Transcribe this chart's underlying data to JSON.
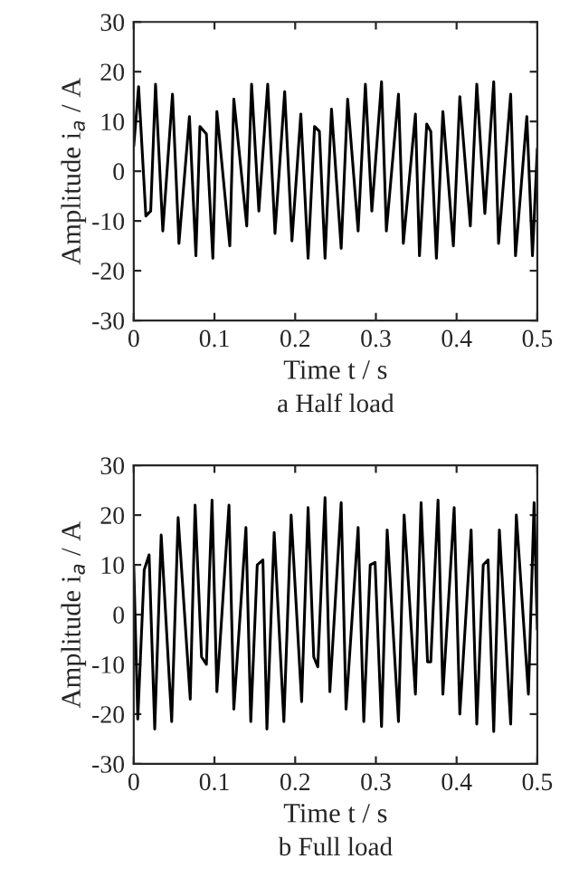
{
  "chart_data": [
    {
      "type": "line",
      "title": "a Half load",
      "xlabel": "Time t / s",
      "ylabel": "Amplitude i$_{a}$ / A",
      "xlim": [
        0,
        0.5
      ],
      "xticks": [
        0,
        0.1,
        0.2,
        0.3,
        0.4,
        0.5
      ],
      "ylim": [
        -30,
        30
      ],
      "yticks": [
        -30,
        -20,
        -10,
        0,
        10,
        20,
        30
      ],
      "grid": false,
      "series": [
        {
          "color": "#000000",
          "x": [
            0,
            0.006,
            0.015,
            0.021,
            0.027,
            0.036,
            0.048,
            0.056,
            0.069,
            0.077,
            0.082,
            0.09,
            0.098,
            0.103,
            0.119,
            0.124,
            0.14,
            0.146,
            0.155,
            0.166,
            0.175,
            0.187,
            0.196,
            0.207,
            0.216,
            0.224,
            0.23,
            0.237,
            0.245,
            0.257,
            0.265,
            0.278,
            0.287,
            0.295,
            0.307,
            0.313,
            0.328,
            0.334,
            0.349,
            0.354,
            0.363,
            0.368,
            0.375,
            0.383,
            0.396,
            0.404,
            0.417,
            0.425,
            0.435,
            0.446,
            0.452,
            0.467,
            0.473,
            0.487,
            0.494,
            0.5
          ],
          "values": [
            5,
            17,
            -9,
            -8,
            17.5,
            -12,
            15.5,
            -14.5,
            11,
            -17,
            9,
            7.5,
            -17.5,
            12,
            -15,
            14.5,
            -11,
            17.5,
            -8,
            17.5,
            -12.5,
            16,
            -14,
            11.5,
            -17.5,
            9,
            8,
            -17.5,
            12.5,
            -15.5,
            14.5,
            -12,
            17.5,
            -8,
            18,
            -12,
            15.5,
            -14.5,
            11.5,
            -17,
            9.5,
            8,
            -17.5,
            12,
            -15,
            15,
            -11,
            17.5,
            -8.5,
            18,
            -14.5,
            15.5,
            -17,
            11,
            -17,
            4.5
          ]
        }
      ]
    },
    {
      "type": "line",
      "title": "b Full load",
      "xlabel": "Time t / s",
      "ylabel": "Amplitude i$_{a}$ / A",
      "xlim": [
        0,
        0.5
      ],
      "xticks": [
        0,
        0.1,
        0.2,
        0.3,
        0.4,
        0.5
      ],
      "ylim": [
        -30,
        30
      ],
      "yticks": [
        -30,
        -20,
        -10,
        0,
        10,
        20,
        30
      ],
      "grid": false,
      "series": [
        {
          "color": "#000000",
          "x": [
            0,
            0.005,
            0.013,
            0.019,
            0.026,
            0.034,
            0.047,
            0.055,
            0.07,
            0.076,
            0.084,
            0.09,
            0.097,
            0.103,
            0.118,
            0.124,
            0.139,
            0.145,
            0.153,
            0.16,
            0.165,
            0.174,
            0.186,
            0.195,
            0.208,
            0.216,
            0.223,
            0.228,
            0.237,
            0.243,
            0.257,
            0.263,
            0.278,
            0.285,
            0.293,
            0.299,
            0.307,
            0.314,
            0.328,
            0.335,
            0.349,
            0.356,
            0.364,
            0.368,
            0.377,
            0.383,
            0.397,
            0.404,
            0.418,
            0.425,
            0.433,
            0.439,
            0.446,
            0.453,
            0.467,
            0.474,
            0.489,
            0.496,
            0.5
          ],
          "values": [
            10,
            -21,
            9,
            12,
            -23,
            16,
            -21.5,
            19.5,
            -17,
            22,
            -8.5,
            -10,
            23,
            -15.5,
            22,
            -19,
            17.5,
            -21.5,
            10,
            11,
            -23,
            16.5,
            -21.5,
            20,
            -17.5,
            21.5,
            -8.5,
            -10.5,
            23.5,
            -15.5,
            22.5,
            -19,
            17.5,
            -21.5,
            10,
            10.5,
            -22.5,
            17,
            -21.5,
            20,
            -16,
            22.5,
            -9.5,
            -9.5,
            23,
            -16,
            21.5,
            -20,
            17,
            -22,
            10,
            11,
            -23.5,
            17,
            -22,
            20,
            -16,
            22.5,
            -3
          ]
        }
      ]
    }
  ]
}
